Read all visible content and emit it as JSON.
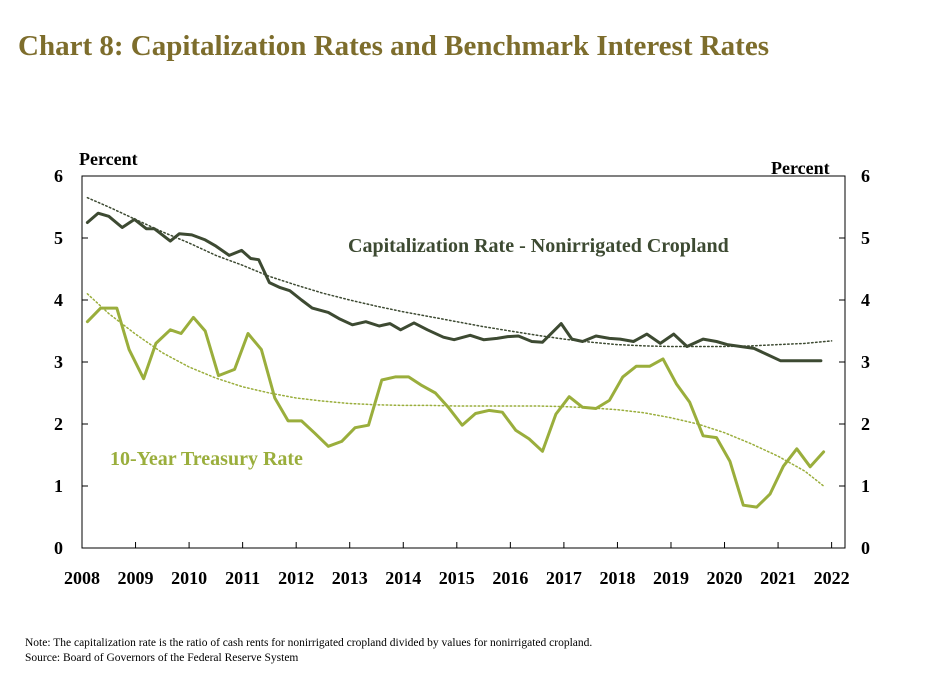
{
  "title": "Chart 8:  Capitalization Rates and Benchmark Interest Rates",
  "colors": {
    "title": "#7d6d2c",
    "cap_rate": "#3d4a32",
    "treasury": "#9aae3c",
    "cap_trend": "#3d4a32",
    "treasury_trend": "#9aae3c"
  },
  "notes": {
    "note": "Note: The capitalization  rate is the ratio of cash rents for nonirrigated  cropland divided  by values for nonirrigated  cropland.",
    "source": "Source: Board of Governors of the Federal Reserve System"
  },
  "chart_data": {
    "type": "line",
    "title": "Chart 8:  Capitalization Rates and Benchmark Interest Rates",
    "ylabel_left": "Percent",
    "ylabel_right": "Percent",
    "ylim": [
      0,
      6
    ],
    "yticks": [
      "0",
      "1",
      "2",
      "3",
      "4",
      "5",
      "6"
    ],
    "xlim": [
      2008.0,
      2022.25
    ],
    "xticks": [
      "2008",
      "2009",
      "2010",
      "2011",
      "2012",
      "2013",
      "2014",
      "2015",
      "2016",
      "2017",
      "2018",
      "2019",
      "2020",
      "2021",
      "2022"
    ],
    "series": [
      {
        "name": "Capitalization Rate - Nonirrigated Cropland",
        "style": "solid",
        "x": [
          2008.1,
          2008.3,
          2008.5,
          2008.75,
          2008.98,
          2009.2,
          2009.35,
          2009.65,
          2009.82,
          2010.05,
          2010.3,
          2010.5,
          2010.75,
          2010.98,
          2011.15,
          2011.3,
          2011.5,
          2011.7,
          2011.88,
          2012.1,
          2012.3,
          2012.6,
          2012.8,
          2013.05,
          2013.3,
          2013.55,
          2013.75,
          2013.95,
          2014.2,
          2014.45,
          2014.75,
          2014.95,
          2015.25,
          2015.5,
          2015.75,
          2015.95,
          2016.15,
          2016.4,
          2016.6,
          2016.95,
          2017.15,
          2017.35,
          2017.6,
          2017.85,
          2018.05,
          2018.3,
          2018.55,
          2018.8,
          2019.05,
          2019.3,
          2019.6,
          2019.85,
          2020.05,
          2020.3,
          2020.55,
          2020.8,
          2021.05,
          2021.3,
          2021.55,
          2021.8
        ],
        "y": [
          5.25,
          5.4,
          5.35,
          5.17,
          5.3,
          5.15,
          5.15,
          4.95,
          5.07,
          5.05,
          4.97,
          4.87,
          4.72,
          4.8,
          4.67,
          4.65,
          4.28,
          4.2,
          4.15,
          4.0,
          3.87,
          3.8,
          3.7,
          3.6,
          3.65,
          3.58,
          3.62,
          3.52,
          3.63,
          3.52,
          3.4,
          3.36,
          3.43,
          3.36,
          3.38,
          3.41,
          3.42,
          3.33,
          3.32,
          3.62,
          3.37,
          3.33,
          3.42,
          3.38,
          3.37,
          3.33,
          3.45,
          3.3,
          3.45,
          3.25,
          3.37,
          3.33,
          3.28,
          3.25,
          3.22,
          3.12,
          3.02,
          3.02,
          3.02,
          3.02
        ]
      },
      {
        "name": "10-Year Treasury Rate",
        "style": "solid",
        "x": [
          2008.1,
          2008.35,
          2008.65,
          2008.88,
          2009.15,
          2009.38,
          2009.65,
          2009.85,
          2010.08,
          2010.3,
          2010.55,
          2010.85,
          2011.1,
          2011.35,
          2011.6,
          2011.85,
          2012.1,
          2012.35,
          2012.6,
          2012.85,
          2013.1,
          2013.35,
          2013.6,
          2013.85,
          2014.1,
          2014.35,
          2014.6,
          2014.85,
          2015.1,
          2015.35,
          2015.6,
          2015.85,
          2016.1,
          2016.35,
          2016.6,
          2016.85,
          2017.1,
          2017.35,
          2017.6,
          2017.85,
          2018.1,
          2018.35,
          2018.6,
          2018.85,
          2019.1,
          2019.35,
          2019.6,
          2019.85,
          2020.1,
          2020.35,
          2020.6,
          2020.85,
          2021.1,
          2021.35,
          2021.6,
          2021.85
        ],
        "y": [
          3.65,
          3.87,
          3.87,
          3.2,
          2.73,
          3.3,
          3.52,
          3.46,
          3.72,
          3.5,
          2.78,
          2.88,
          3.46,
          3.2,
          2.42,
          2.05,
          2.05,
          1.85,
          1.64,
          1.72,
          1.94,
          1.98,
          2.71,
          2.76,
          2.76,
          2.62,
          2.5,
          2.26,
          1.98,
          2.17,
          2.22,
          2.19,
          1.9,
          1.76,
          1.56,
          2.16,
          2.44,
          2.27,
          2.25,
          2.38,
          2.76,
          2.93,
          2.93,
          3.05,
          2.65,
          2.35,
          1.81,
          1.78,
          1.4,
          0.69,
          0.66,
          0.87,
          1.32,
          1.6,
          1.31,
          1.55
        ]
      },
      {
        "name": "Capitalization Rate trend",
        "style": "dotted",
        "x": [
          2008.1,
          2008.5,
          2009.0,
          2009.5,
          2010.0,
          2010.5,
          2011.0,
          2011.5,
          2012.0,
          2012.5,
          2013.0,
          2013.5,
          2014.0,
          2014.5,
          2015.0,
          2015.5,
          2016.0,
          2016.5,
          2017.0,
          2017.5,
          2018.0,
          2018.5,
          2019.0,
          2019.5,
          2020.0,
          2020.5,
          2021.0,
          2021.5,
          2022.0
        ],
        "y": [
          5.65,
          5.5,
          5.3,
          5.1,
          4.92,
          4.72,
          4.56,
          4.38,
          4.24,
          4.11,
          4.0,
          3.9,
          3.81,
          3.73,
          3.65,
          3.57,
          3.5,
          3.43,
          3.37,
          3.32,
          3.28,
          3.26,
          3.25,
          3.25,
          3.25,
          3.26,
          3.28,
          3.3,
          3.34
        ]
      },
      {
        "name": "10-Year Treasury Rate trend",
        "style": "dotted",
        "x": [
          2008.1,
          2008.5,
          2009.0,
          2009.5,
          2010.0,
          2010.5,
          2011.0,
          2011.5,
          2012.0,
          2012.5,
          2013.0,
          2013.5,
          2014.0,
          2014.5,
          2015.0,
          2015.5,
          2016.0,
          2016.5,
          2017.0,
          2017.5,
          2018.0,
          2018.5,
          2019.0,
          2019.5,
          2020.0,
          2020.5,
          2021.0,
          2021.5,
          2021.85
        ],
        "y": [
          4.1,
          3.78,
          3.45,
          3.15,
          2.92,
          2.74,
          2.6,
          2.5,
          2.42,
          2.37,
          2.33,
          2.31,
          2.3,
          2.3,
          2.29,
          2.29,
          2.29,
          2.29,
          2.28,
          2.26,
          2.23,
          2.18,
          2.1,
          2.0,
          1.86,
          1.68,
          1.48,
          1.24,
          1.0
        ]
      }
    ],
    "annotations": [
      {
        "text": "Capitalization Rate - Nonirrigated Cropland",
        "series": "Capitalization Rate - Nonirrigated Cropland"
      },
      {
        "text": "10-Year Treasury Rate",
        "series": "10-Year Treasury Rate"
      }
    ]
  }
}
